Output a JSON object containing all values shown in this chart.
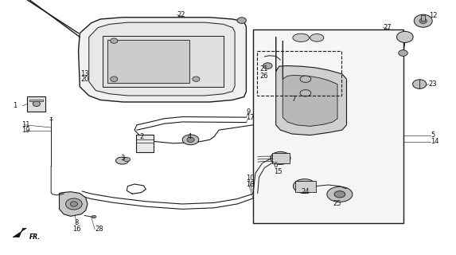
{
  "bg_color": "#ffffff",
  "line_color": "#1a1a1a",
  "label_color": "#111111",
  "figsize": [
    5.73,
    3.2
  ],
  "dpi": 100,
  "labels": {
    "1": [
      0.038,
      0.415,
      "right"
    ],
    "2": [
      0.31,
      0.535,
      "center"
    ],
    "3": [
      0.268,
      0.62,
      "center"
    ],
    "4": [
      0.415,
      0.535,
      "center"
    ],
    "5": [
      0.945,
      0.53,
      "left"
    ],
    "6": [
      0.6,
      0.65,
      "left"
    ],
    "7": [
      0.64,
      0.39,
      "left"
    ],
    "8": [
      0.168,
      0.875,
      "center"
    ],
    "9": [
      0.54,
      0.44,
      "left"
    ],
    "10": [
      0.54,
      0.7,
      "left"
    ],
    "11": [
      0.048,
      0.49,
      "left"
    ],
    "12": [
      0.94,
      0.06,
      "left"
    ],
    "13": [
      0.195,
      0.29,
      "right"
    ],
    "14": [
      0.945,
      0.555,
      "left"
    ],
    "15": [
      0.6,
      0.672,
      "left"
    ],
    "16": [
      0.168,
      0.9,
      "center"
    ],
    "17": [
      0.54,
      0.462,
      "left"
    ],
    "18": [
      0.54,
      0.722,
      "left"
    ],
    "19": [
      0.048,
      0.512,
      "left"
    ],
    "20": [
      0.195,
      0.312,
      "right"
    ],
    "21": [
      0.57,
      0.27,
      "left"
    ],
    "22": [
      0.388,
      0.058,
      "left"
    ],
    "23": [
      0.94,
      0.33,
      "left"
    ],
    "24": [
      0.66,
      0.752,
      "left"
    ],
    "25": [
      0.73,
      0.8,
      "left"
    ],
    "26": [
      0.57,
      0.3,
      "left"
    ],
    "27": [
      0.84,
      0.108,
      "left"
    ],
    "28": [
      0.208,
      0.9,
      "left"
    ]
  }
}
